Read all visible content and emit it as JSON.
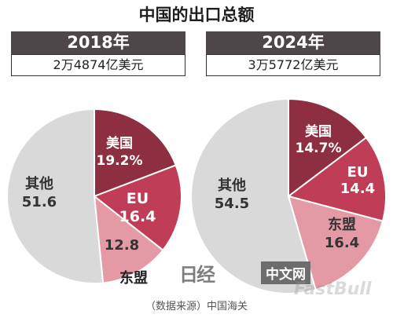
{
  "title": "中国的出口总额",
  "chart_data": [
    {
      "type": "pie",
      "year": "2018年",
      "total": "2万4874亿美元",
      "slices": [
        {
          "label": "美国",
          "value": 19.2,
          "value_text": "19.2%",
          "color": "#8e2e41"
        },
        {
          "label": "EU",
          "value": 16.4,
          "value_text": "16.4",
          "color": "#bf3d57"
        },
        {
          "label": "东盟",
          "value": 12.8,
          "value_text": "12.8",
          "color": "#e49aa5"
        },
        {
          "label": "其他",
          "value": 51.6,
          "value_text": "51.6",
          "color": "#d9d9d9"
        }
      ]
    },
    {
      "type": "pie",
      "year": "2024年",
      "total": "3万5772亿美元",
      "slices": [
        {
          "label": "美国",
          "value": 14.7,
          "value_text": "14.7%",
          "color": "#8e2e41"
        },
        {
          "label": "EU",
          "value": 14.4,
          "value_text": "14.4",
          "color": "#bf3d57"
        },
        {
          "label": "东盟",
          "value": 16.4,
          "value_text": "16.4",
          "color": "#e49aa5"
        },
        {
          "label": "其他",
          "value": 54.5,
          "value_text": "54.5",
          "color": "#d9d9d9"
        }
      ]
    }
  ],
  "source": "（数据来源）中国海关",
  "watermark": {
    "logo": "日经",
    "badge": "中文网",
    "site": "FastBull"
  }
}
